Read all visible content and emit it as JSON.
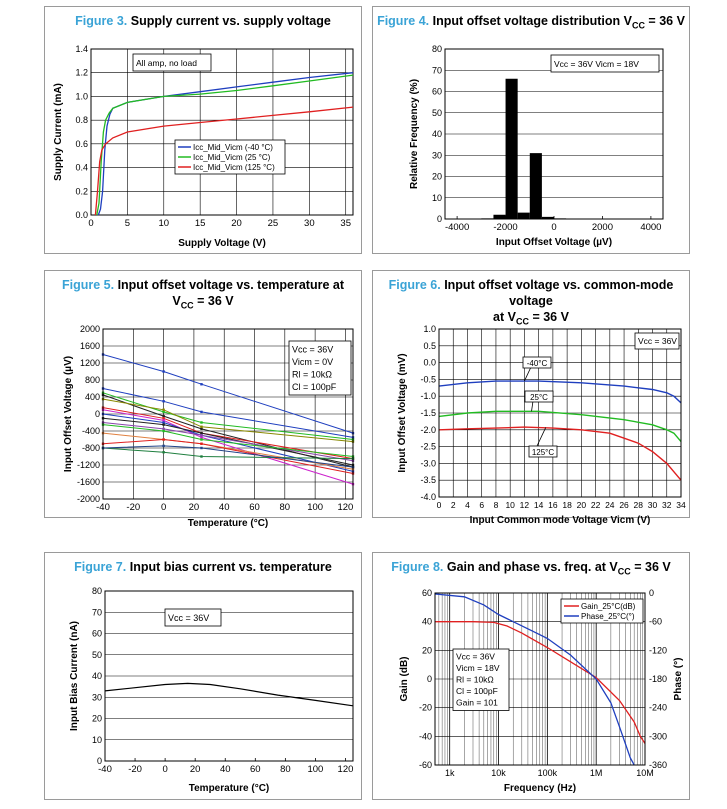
{
  "figures": [
    {
      "num": "Figure 3.",
      "title": "Supply current vs. supply voltage"
    },
    {
      "num": "Figure 4.",
      "title": "Input offset voltage distribution V",
      "sub": "CC",
      "tail": " = 36 V"
    },
    {
      "num": "Figure 5.",
      "title": "Input offset voltage vs. temperature at",
      "line2": "V",
      "sub": "CC",
      "tail": " = 36 V"
    },
    {
      "num": "Figure 6.",
      "title": "Input offset voltage vs. common-mode voltage",
      "line2": "at V",
      "sub": "CC",
      "tail": " = 36 V"
    },
    {
      "num": "Figure 7.",
      "title": "Input bias current vs. temperature"
    },
    {
      "num": "Figure 8.",
      "title": "Gain and phase vs. freq. at V",
      "sub": "CC",
      "tail": " = 36 V"
    }
  ],
  "chart_data": [
    {
      "id": "fig3",
      "type": "line",
      "xlabel": "Supply Voltage (V)",
      "ylabel": "Supply Current (mA)",
      "xlim": [
        0,
        36
      ],
      "ylim": [
        0,
        1.4
      ],
      "xticks": [
        "0",
        "5",
        "10",
        "15",
        "20",
        "25",
        "30",
        "35"
      ],
      "yticks": [
        "0.0",
        "0.2",
        "0.4",
        "0.6",
        "0.8",
        "1.0",
        "1.2",
        "1.4"
      ],
      "annotation": "All amp, no load",
      "legend": [
        "Icc_Mid_Vicm (-40 °C)",
        "Icc_Mid_Vicm (25 °C)",
        "Icc_Mid_Vicm (125 °C)"
      ],
      "colors": {
        "blue": "#1f3fbf",
        "green": "#22bb22",
        "red": "#e02020"
      },
      "series": [
        {
          "name": "Icc_Mid_Vicm (-40 °C)",
          "color": "blue",
          "points": [
            [
              1,
              0
            ],
            [
              1.3,
              0.05
            ],
            [
              1.6,
              0.2
            ],
            [
              1.9,
              0.55
            ],
            [
              2.2,
              0.75
            ],
            [
              2.6,
              0.85
            ],
            [
              3,
              0.9
            ],
            [
              5,
              0.95
            ],
            [
              10,
              1.0
            ],
            [
              15,
              1.04
            ],
            [
              20,
              1.08
            ],
            [
              25,
              1.12
            ],
            [
              30,
              1.16
            ],
            [
              36,
              1.2
            ]
          ]
        },
        {
          "name": "Icc_Mid_Vicm (25 °C)",
          "color": "green",
          "points": [
            [
              0.8,
              0
            ],
            [
              1.1,
              0.1
            ],
            [
              1.4,
              0.45
            ],
            [
              1.7,
              0.7
            ],
            [
              2,
              0.8
            ],
            [
              2.5,
              0.86
            ],
            [
              3,
              0.9
            ],
            [
              5,
              0.95
            ],
            [
              10,
              1.0
            ],
            [
              15,
              1.02
            ],
            [
              20,
              1.05
            ],
            [
              25,
              1.09
            ],
            [
              30,
              1.13
            ],
            [
              36,
              1.18
            ]
          ]
        },
        {
          "name": "Icc_Mid_Vicm (125 °C)",
          "color": "red",
          "points": [
            [
              0.6,
              0
            ],
            [
              0.9,
              0.2
            ],
            [
              1.2,
              0.45
            ],
            [
              1.5,
              0.55
            ],
            [
              2,
              0.6
            ],
            [
              3,
              0.65
            ],
            [
              5,
              0.7
            ],
            [
              10,
              0.75
            ],
            [
              15,
              0.78
            ],
            [
              20,
              0.81
            ],
            [
              25,
              0.84
            ],
            [
              30,
              0.87
            ],
            [
              36,
              0.91
            ]
          ]
        }
      ]
    },
    {
      "id": "fig4",
      "type": "bar",
      "xlabel": "Input Offset Voltage (µV)",
      "ylabel": "Relative Frequency (%)",
      "xlim": [
        -4500,
        4500
      ],
      "ylim": [
        0,
        80
      ],
      "xticks": [
        "-4000",
        "-2000",
        "0",
        "2000",
        "4000"
      ],
      "yticks": [
        "0",
        "10",
        "20",
        "30",
        "40",
        "50",
        "60",
        "70",
        "80"
      ],
      "annotation": "Vcc = 36V Vicm = 18V",
      "bin_width": 500,
      "bins": [
        {
          "center": -2750,
          "value": 0.3
        },
        {
          "center": -2250,
          "value": 2
        },
        {
          "center": -1750,
          "value": 66
        },
        {
          "center": -1250,
          "value": 3
        },
        {
          "center": -750,
          "value": 31
        },
        {
          "center": -250,
          "value": 1
        },
        {
          "center": 250,
          "value": 0.3
        }
      ]
    },
    {
      "id": "fig5",
      "type": "line",
      "xlabel": "Temperature (°C)",
      "ylabel": "Input Offset Voltage (µV)",
      "xlim": [
        -40,
        125
      ],
      "ylim": [
        -2000,
        2000
      ],
      "xticks": [
        "-40",
        "-20",
        "0",
        "20",
        "40",
        "60",
        "80",
        "100",
        "120"
      ],
      "yticks": [
        "-2000",
        "-1600",
        "-1200",
        "-800",
        "-400",
        "0",
        "400",
        "800",
        "1200",
        "1600",
        "2000"
      ],
      "annotation": [
        "Vcc = 36V",
        "Vicm = 0V",
        "Rl = 10kΩ",
        "Cl = 100pF"
      ],
      "x": [
        -40,
        0,
        25,
        125
      ],
      "series": [
        {
          "color": "#1f3fbf",
          "values": [
            1400,
            1000,
            700,
            -450
          ]
        },
        {
          "color": "#1f3fbf",
          "values": [
            600,
            300,
            50,
            -550
          ]
        },
        {
          "color": "#22bb22",
          "values": [
            500,
            50,
            -200,
            -600
          ]
        },
        {
          "color": "#222222",
          "values": [
            450,
            -50,
            -350,
            -1250
          ]
        },
        {
          "color": "#888800",
          "values": [
            350,
            100,
            -300,
            -650
          ]
        },
        {
          "color": "#e02020",
          "values": [
            150,
            -100,
            -450,
            -1050
          ]
        },
        {
          "color": "#cc22cc",
          "values": [
            100,
            -150,
            -550,
            -1650
          ]
        },
        {
          "color": "#1f3fbf",
          "values": [
            0,
            -200,
            -500,
            -1350
          ]
        },
        {
          "color": "#222222",
          "values": [
            -100,
            -250,
            -450,
            -1200
          ]
        },
        {
          "color": "#8844aa",
          "values": [
            -200,
            -350,
            -500,
            -1100
          ]
        },
        {
          "color": "#22bb22",
          "values": [
            -250,
            -400,
            -600,
            -1000
          ]
        },
        {
          "color": "#e08040",
          "values": [
            -450,
            -600,
            -700,
            -1300
          ]
        },
        {
          "color": "#e02020",
          "values": [
            -700,
            -600,
            -700,
            -1400
          ]
        },
        {
          "color": "#1f7f3f",
          "values": [
            -800,
            -900,
            -1000,
            -1050
          ]
        },
        {
          "color": "#224488",
          "values": [
            -800,
            -750,
            -800,
            -1250
          ]
        }
      ]
    },
    {
      "id": "fig6",
      "type": "line",
      "xlabel": "Input Common mode Voltage Vicm (V)",
      "ylabel": "Input Offset Voltage  (mV)",
      "xlim": [
        0,
        34
      ],
      "ylim": [
        -4,
        1
      ],
      "xticks": [
        "0",
        "2",
        "4",
        "6",
        "8",
        "10",
        "12",
        "14",
        "16",
        "18",
        "20",
        "22",
        "24",
        "26",
        "28",
        "30",
        "32",
        "34"
      ],
      "yticks": [
        "-4.0",
        "-3.5",
        "-3.0",
        "-2.5",
        "-2.0",
        "-1.5",
        "-1.0",
        "-0.5",
        "0.0",
        "0.5",
        "1.0"
      ],
      "annotation": "Vcc = 36V",
      "labels": [
        "-40°C",
        "25°C",
        "125°C"
      ],
      "series": [
        {
          "name": "-40°C",
          "color": "#1f3fbf",
          "points": [
            [
              0,
              -0.7
            ],
            [
              4,
              -0.6
            ],
            [
              8,
              -0.55
            ],
            [
              14,
              -0.55
            ],
            [
              20,
              -0.6
            ],
            [
              26,
              -0.7
            ],
            [
              30,
              -0.8
            ],
            [
              32,
              -0.9
            ],
            [
              33,
              -1.0
            ],
            [
              34,
              -1.2
            ]
          ]
        },
        {
          "name": "25°C",
          "color": "#22bb22",
          "points": [
            [
              0,
              -1.6
            ],
            [
              4,
              -1.5
            ],
            [
              8,
              -1.45
            ],
            [
              14,
              -1.45
            ],
            [
              20,
              -1.55
            ],
            [
              26,
              -1.7
            ],
            [
              30,
              -1.85
            ],
            [
              32,
              -2.0
            ],
            [
              33,
              -2.1
            ],
            [
              34,
              -2.35
            ]
          ]
        },
        {
          "name": "125°C",
          "color": "#e02020",
          "points": [
            [
              0,
              -2.0
            ],
            [
              4,
              -1.97
            ],
            [
              8,
              -1.95
            ],
            [
              12,
              -1.92
            ],
            [
              16,
              -1.95
            ],
            [
              20,
              -2.0
            ],
            [
              24,
              -2.1
            ],
            [
              26,
              -2.25
            ],
            [
              28,
              -2.4
            ],
            [
              30,
              -2.65
            ],
            [
              32,
              -3.0
            ],
            [
              34,
              -3.5
            ]
          ]
        }
      ]
    },
    {
      "id": "fig7",
      "type": "line",
      "xlabel": "Temperature (°C)",
      "ylabel": "Input Bias Current (nA)",
      "xlim": [
        -40,
        125
      ],
      "ylim": [
        0,
        80
      ],
      "xticks": [
        "-40",
        "-20",
        "0",
        "20",
        "40",
        "60",
        "80",
        "100",
        "120"
      ],
      "yticks": [
        "0",
        "10",
        "20",
        "30",
        "40",
        "50",
        "60",
        "70",
        "80"
      ],
      "annotation": "Vcc = 36V",
      "series": [
        {
          "color": "#000000",
          "points": [
            [
              -40,
              33
            ],
            [
              -20,
              34.5
            ],
            [
              0,
              36
            ],
            [
              15,
              36.5
            ],
            [
              30,
              36
            ],
            [
              50,
              34
            ],
            [
              75,
              31
            ],
            [
              100,
              28.5
            ],
            [
              125,
              26
            ]
          ]
        }
      ]
    },
    {
      "id": "fig8",
      "type": "line",
      "xlabel": "Frequency (Hz)",
      "ylabel": "Gain (dB)",
      "y2label": "Phase (°)",
      "xlim": [
        500,
        10000000
      ],
      "ylim": [
        -60,
        60
      ],
      "y2lim": [
        -360,
        0
      ],
      "xticks": [
        "1k",
        "10k",
        "100k",
        "1M",
        "10M"
      ],
      "yticks": [
        "-60",
        "-40",
        "-20",
        "0",
        "20",
        "40",
        "60"
      ],
      "y2ticks": [
        "-360",
        "-300",
        "-240",
        "-180",
        "-120",
        "-60",
        "0"
      ],
      "annotation": [
        "Vcc = 36V",
        "Vicm = 18V",
        "Rl = 10kΩ",
        "Cl = 100pF",
        "Gain = 101"
      ],
      "legend": [
        "Gain_25°C(dB)",
        "Phase_25°C(°)"
      ],
      "series": [
        {
          "name": "Gain_25°C(dB)",
          "axis": "left",
          "color": "#e02020",
          "points": [
            [
              500,
              40
            ],
            [
              3000,
              40
            ],
            [
              8000,
              39.5
            ],
            [
              15000,
              37
            ],
            [
              30000,
              32
            ],
            [
              100000,
              22
            ],
            [
              300000,
              12
            ],
            [
              1000000,
              1
            ],
            [
              3000000,
              -15
            ],
            [
              6000000,
              -30
            ],
            [
              8000000,
              -40
            ],
            [
              10000000,
              -45
            ]
          ]
        },
        {
          "name": "Phase_25°C(°)",
          "axis": "right",
          "color": "#1f3fbf",
          "points": [
            [
              500,
              -2
            ],
            [
              2000,
              -8
            ],
            [
              5000,
              -25
            ],
            [
              10000,
              -45
            ],
            [
              20000,
              -60
            ],
            [
              50000,
              -80
            ],
            [
              100000,
              -95
            ],
            [
              300000,
              -130
            ],
            [
              1000000,
              -180
            ],
            [
              2000000,
              -230
            ],
            [
              3000000,
              -280
            ],
            [
              5000000,
              -345
            ],
            [
              6000000,
              -365
            ]
          ]
        }
      ]
    }
  ]
}
